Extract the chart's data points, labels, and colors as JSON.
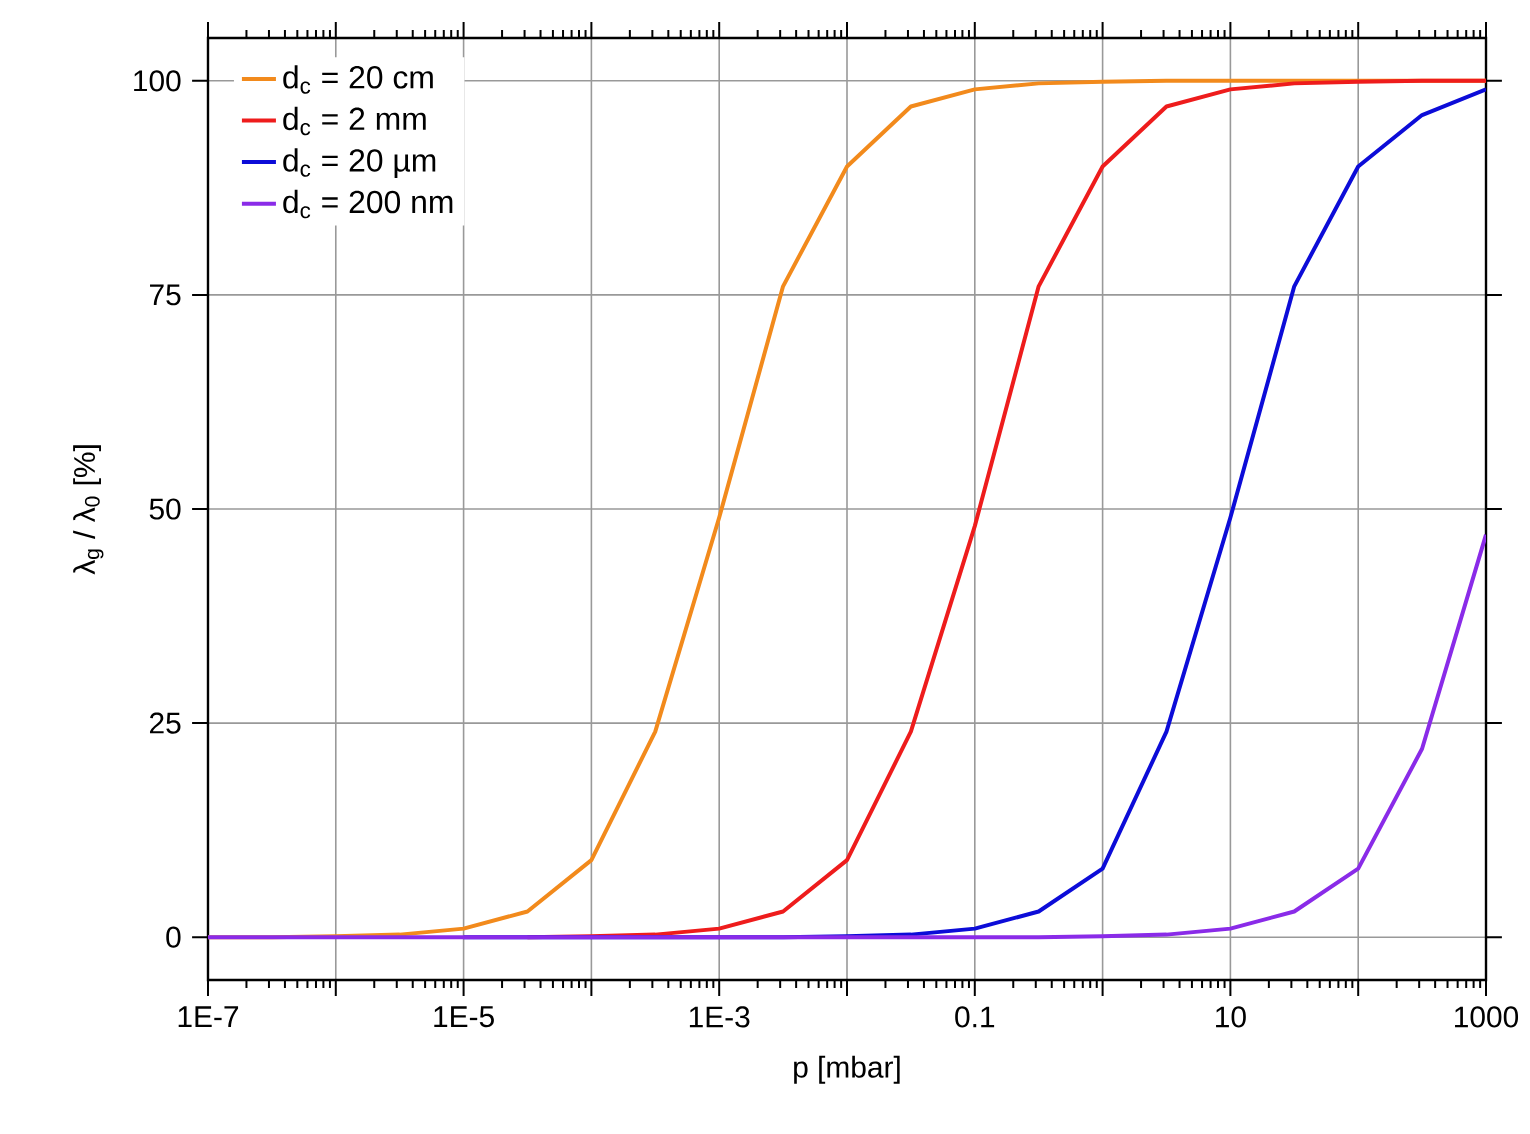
{
  "chart_data": {
    "type": "line",
    "xlabel": "p [mbar]",
    "ylabel": "λ$_{g}$ / λ$_{0}$ [%]",
    "log": "x",
    "grid": true,
    "legend": "top left",
    "line_style": "solid",
    "marker": "none",
    "x": [
      1e-07,
      3.16e-07,
      1e-06,
      3.16e-06,
      1e-05,
      3.16e-05,
      0.0001,
      0.000316,
      0.001,
      0.00316,
      0.01,
      0.0316,
      0.1,
      0.316,
      1,
      3.16,
      10,
      31.6,
      100,
      316,
      1000
    ],
    "xlim": [
      1e-07,
      1000
    ],
    "ylim": [
      -5,
      105
    ],
    "xticks": [
      {
        "value": 1e-07,
        "label": "1E-7"
      },
      {
        "value": 1e-06,
        "label": null
      },
      {
        "value": 1e-05,
        "label": "1E-5"
      },
      {
        "value": 0.0001,
        "label": null
      },
      {
        "value": 0.001,
        "label": "1E-3"
      },
      {
        "value": 0.01,
        "label": null
      },
      {
        "value": 0.1,
        "label": "0.1"
      },
      {
        "value": 1,
        "label": null
      },
      {
        "value": 10,
        "label": "10"
      },
      {
        "value": 100,
        "label": null
      },
      {
        "value": 1000,
        "label": "1000"
      }
    ],
    "yticks": [
      0,
      25,
      50,
      75,
      100
    ],
    "series": [
      {
        "name": "d$_{c}$ = 20 cm",
        "color": "#f28a1c",
        "values": [
          0,
          0,
          0.1,
          0.3,
          1,
          3,
          9,
          24,
          49,
          76,
          90,
          97,
          99,
          99.7,
          99.9,
          100,
          100,
          100,
          100,
          100,
          100
        ]
      },
      {
        "name": "d$_{c}$ = 2 mm",
        "color": "#ee1c1c",
        "values": [
          null,
          null,
          null,
          null,
          null,
          0,
          0.1,
          0.3,
          1,
          3,
          9,
          24,
          48,
          76,
          90,
          97,
          99,
          99.7,
          99.9,
          100,
          100
        ]
      },
      {
        "name": "d$_{c}$ = 20 µm",
        "color": "#0c0cd8",
        "values": [
          null,
          null,
          null,
          null,
          0,
          0,
          0,
          0,
          0,
          0,
          0.1,
          0.3,
          1,
          3,
          8,
          24,
          49,
          76,
          90,
          96,
          99
        ]
      },
      {
        "name": "d$_{c}$ = 200 nm",
        "color": "#8a2be8",
        "values": [
          0,
          0,
          0,
          0,
          0,
          0,
          0,
          0,
          0,
          0,
          0,
          0,
          0,
          0,
          0.1,
          0.3,
          1,
          3,
          8,
          22,
          47
        ]
      }
    ]
  }
}
